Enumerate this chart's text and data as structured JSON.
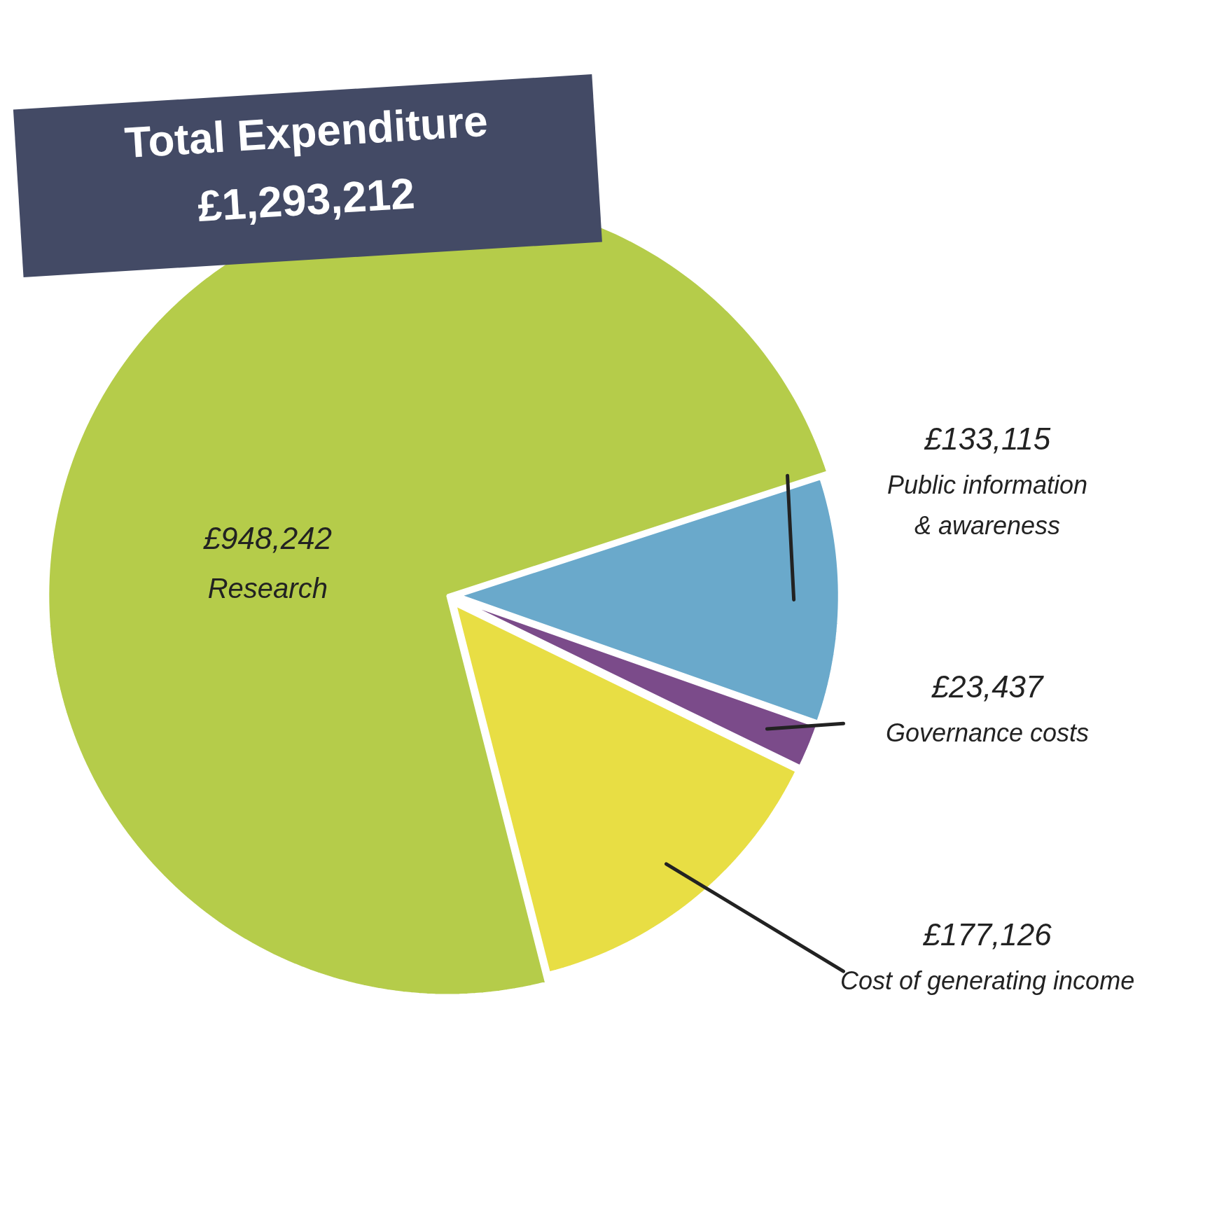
{
  "chart_data": {
    "type": "pie",
    "title": "Total Expenditure",
    "subtitle": "£1,293,212",
    "categories": [
      "Research",
      "Public information & awareness",
      "Governance costs",
      "Cost of generating income"
    ],
    "values": [
      948242,
      133115,
      23437,
      177126
    ],
    "value_labels": [
      "£948,242",
      "£133,115",
      "£23,437",
      "£177,126"
    ],
    "colors": [
      "#b5cc4a",
      "#6aa9cb",
      "#7b4b8a",
      "#e8de44"
    ]
  }
}
